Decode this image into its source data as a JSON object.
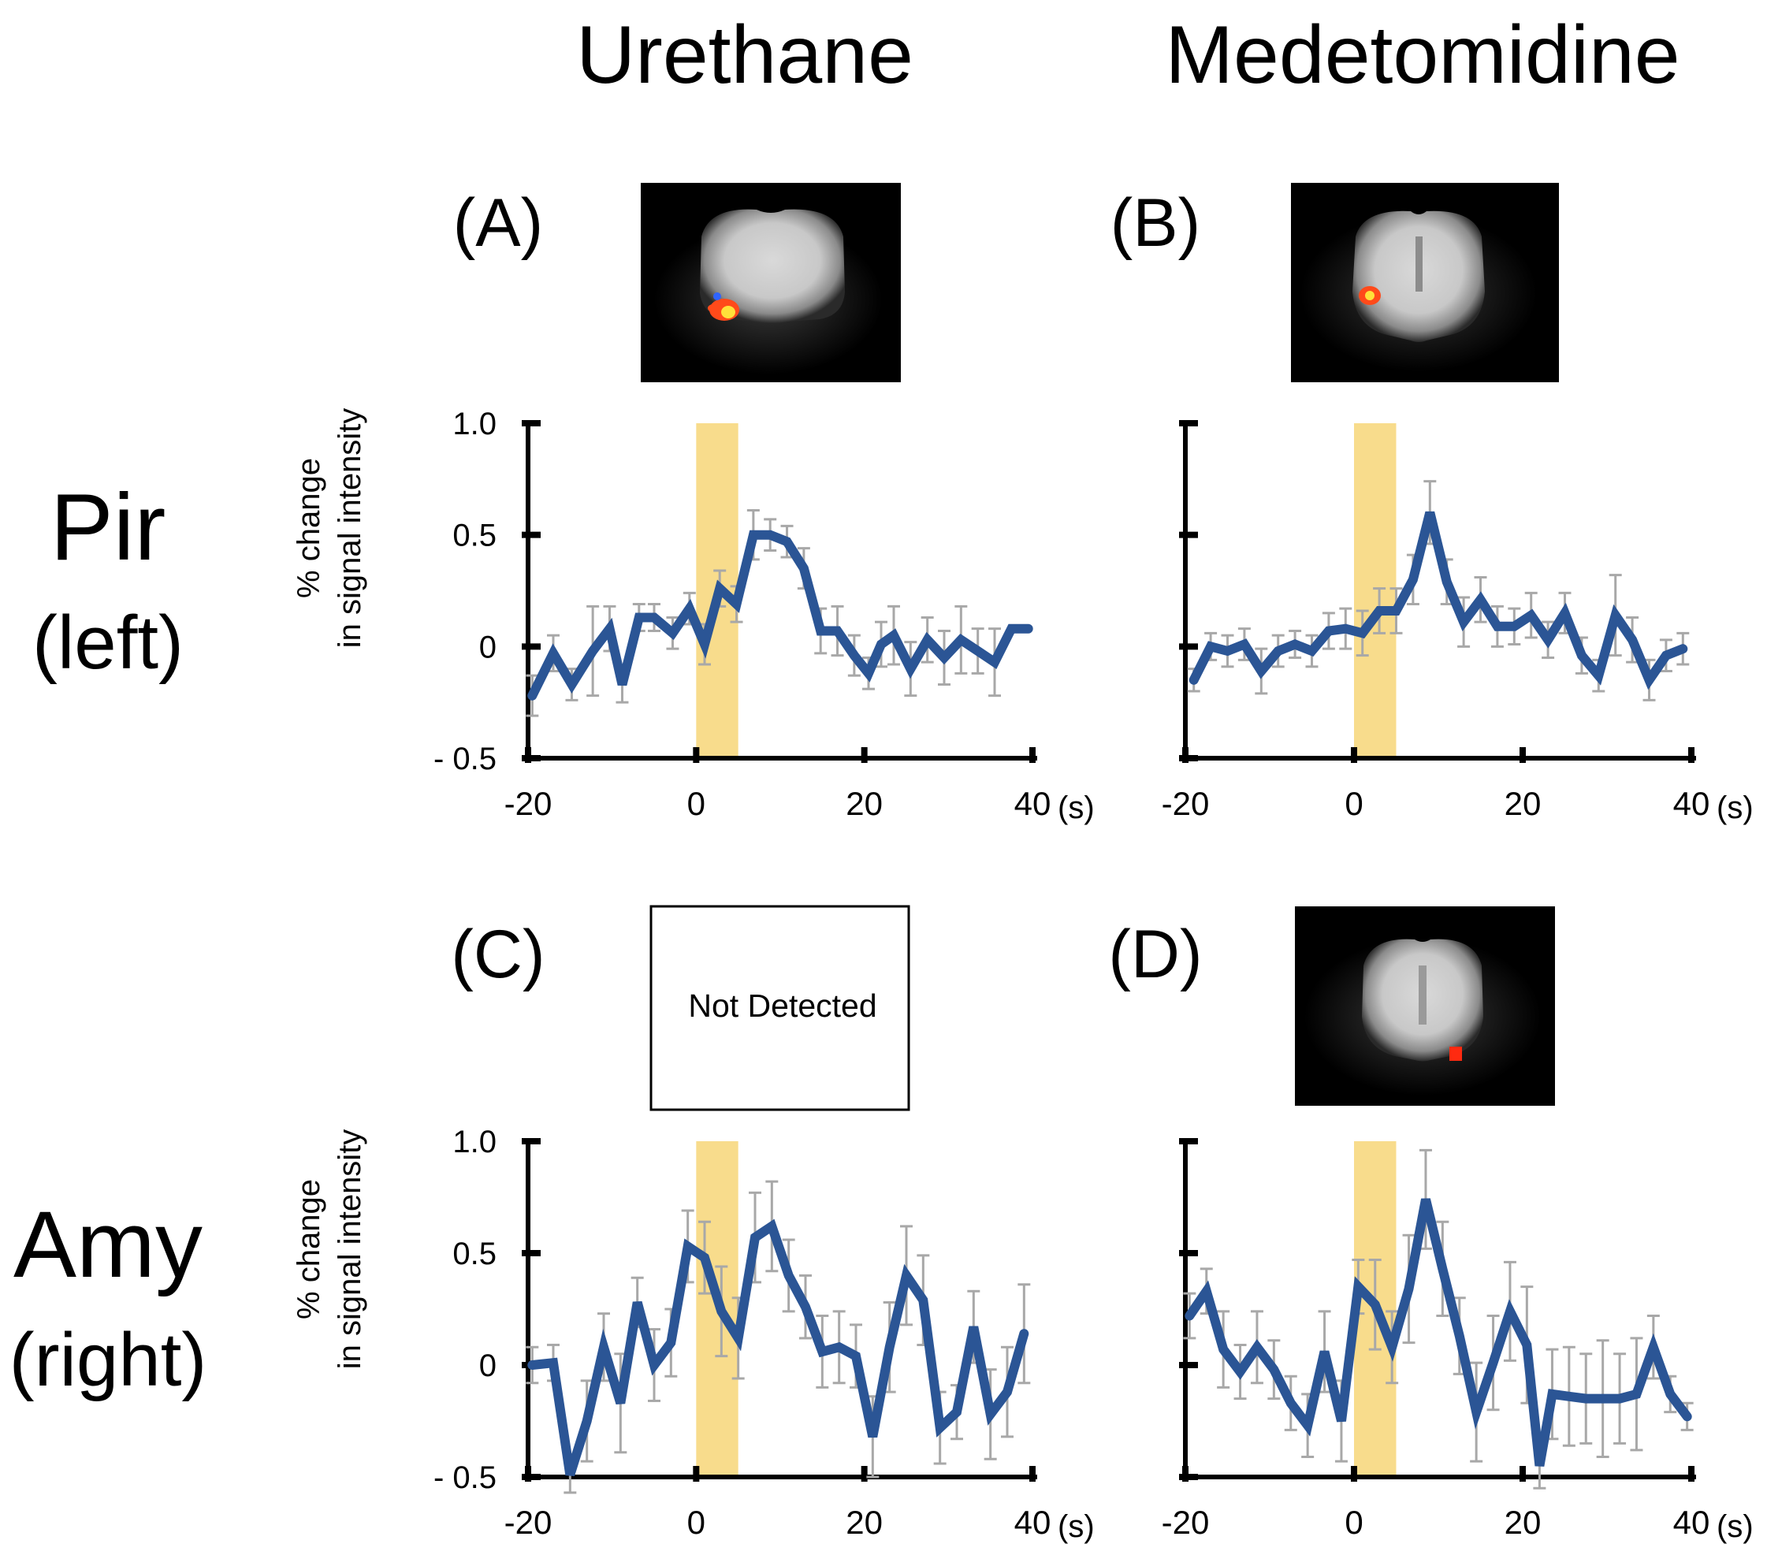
{
  "column_headers": [
    "Urethane",
    "Medetomidine"
  ],
  "row_labels": [
    {
      "region": "Pir",
      "side": "(left)"
    },
    {
      "region": "Amy",
      "side": "(right)"
    }
  ],
  "y_axis_title_line1": "% change",
  "y_axis_title_line2": "in signal intensity",
  "x_unit": "(s)",
  "not_detected_text": "Not Detected",
  "colors": {
    "line": "#2b5595",
    "stimulus_band": "#f8dc8c",
    "error_bar": "#a8a8a8",
    "axis": "#000000",
    "hot_blob": "#ff4a1a",
    "hot_center": "#ffe13a",
    "cold_blob": "#2f64ff"
  },
  "chart_data": [
    {
      "type": "line",
      "panel": "(A)",
      "anesthetic": "Urethane",
      "region": "Pir (left)",
      "xlabel": "(s)",
      "ylabel": "% change in signal intensity",
      "xlim": [
        -20,
        40
      ],
      "ylim": [
        -0.5,
        1.0
      ],
      "x_ticks": [
        "-20",
        "0",
        "20",
        "40"
      ],
      "y_ticks": [
        "1.0",
        "0.5",
        "0",
        "- 0.5"
      ],
      "y_tick_values": [
        1.0,
        0.5,
        0,
        -0.5
      ],
      "show_y_tick_labels": true,
      "stimulus": [
        0,
        5
      ],
      "activation_map": "shown",
      "x": [
        -19.5,
        -17,
        -14.8,
        -12.3,
        -10.3,
        -8.8,
        -6.8,
        -5,
        -2.8,
        -0.8,
        1,
        2.8,
        4.8,
        6.8,
        8.8,
        10.8,
        12.8,
        14.8,
        16.8,
        18.8,
        20.5,
        22,
        23.5,
        25.5,
        27.5,
        29.5,
        31.5,
        33.5,
        35.5,
        37.5,
        39.5
      ],
      "y": [
        -0.22,
        -0.03,
        -0.17,
        -0.02,
        0.08,
        -0.17,
        0.13,
        0.13,
        0.06,
        0.17,
        0.01,
        0.26,
        0.19,
        0.5,
        0.5,
        0.47,
        0.35,
        0.07,
        0.07,
        -0.04,
        -0.12,
        0.01,
        0.05,
        -0.1,
        0.03,
        -0.05,
        0.03,
        -0.02,
        -0.07,
        0.08,
        0.08
      ],
      "err": [
        0.09,
        0.08,
        0.07,
        0.2,
        0.1,
        0.08,
        0.06,
        0.06,
        0.07,
        0.07,
        0.09,
        0.08,
        0.08,
        0.11,
        0.07,
        0.07,
        0.09,
        0.1,
        0.11,
        0.09,
        0.07,
        0.1,
        0.13,
        0.12,
        0.1,
        0.12,
        0.15,
        0.1,
        0.15,
        0.0,
        0.0
      ],
      "label_id": "A"
    },
    {
      "type": "line",
      "panel": "(B)",
      "anesthetic": "Medetomidine",
      "region": "Pir (left)",
      "xlabel": "(s)",
      "ylabel": "% change in signal intensity",
      "xlim": [
        -20,
        40
      ],
      "ylim": [
        -0.5,
        1.0
      ],
      "x_ticks": [
        "-20",
        "0",
        "20",
        "40"
      ],
      "y_ticks": [],
      "y_tick_values": [
        1.0,
        0.5,
        0,
        -0.5
      ],
      "show_y_tick_labels": false,
      "stimulus": [
        0,
        5
      ],
      "activation_map": "shown",
      "x": [
        -19,
        -17,
        -15,
        -13,
        -11,
        -9,
        -7,
        -5,
        -3,
        -1,
        1,
        3,
        5,
        7,
        9,
        11,
        13,
        15,
        17,
        19,
        21,
        23,
        25,
        27,
        29,
        31,
        33,
        35,
        37,
        39
      ],
      "y": [
        -0.15,
        0.0,
        -0.02,
        0.01,
        -0.11,
        -0.02,
        0.01,
        -0.02,
        0.07,
        0.08,
        0.06,
        0.16,
        0.16,
        0.3,
        0.6,
        0.29,
        0.11,
        0.21,
        0.09,
        0.09,
        0.14,
        0.03,
        0.15,
        -0.04,
        -0.13,
        0.14,
        0.03,
        -0.15,
        -0.04,
        -0.01
      ],
      "err": [
        0.05,
        0.06,
        0.07,
        0.07,
        0.1,
        0.07,
        0.06,
        0.07,
        0.08,
        0.09,
        0.1,
        0.1,
        0.1,
        0.11,
        0.14,
        0.1,
        0.11,
        0.1,
        0.09,
        0.08,
        0.1,
        0.08,
        0.09,
        0.08,
        0.07,
        0.18,
        0.1,
        0.09,
        0.07,
        0.07
      ],
      "label_id": "B"
    },
    {
      "type": "line",
      "panel": "(C)",
      "anesthetic": "Urethane",
      "region": "Amy (right)",
      "xlabel": "(s)",
      "ylabel": "% change in signal intensity",
      "xlim": [
        -20,
        40
      ],
      "ylim": [
        -0.5,
        1.0
      ],
      "x_ticks": [
        "-20",
        "0",
        "20",
        "40"
      ],
      "y_ticks": [
        "1.0",
        "0.5",
        "0",
        "- 0.5"
      ],
      "y_tick_values": [
        1.0,
        0.5,
        0,
        -0.5
      ],
      "show_y_tick_labels": true,
      "stimulus": [
        0,
        5
      ],
      "activation_map": "not_detected",
      "x": [
        -19.5,
        -17,
        -15,
        -13,
        -11,
        -9,
        -7,
        -5,
        -3,
        -1,
        1,
        3,
        5,
        7,
        9,
        11,
        13,
        15,
        17,
        19,
        21,
        23,
        25,
        27,
        29,
        31,
        33,
        35,
        37,
        39
      ],
      "y": [
        0.0,
        0.01,
        -0.49,
        -0.25,
        0.08,
        -0.17,
        0.28,
        0.0,
        0.1,
        0.53,
        0.48,
        0.24,
        0.12,
        0.57,
        0.62,
        0.4,
        0.26,
        0.06,
        0.08,
        0.04,
        -0.32,
        0.08,
        0.4,
        0.29,
        -0.28,
        -0.21,
        0.17,
        -0.22,
        -0.12,
        0.14
      ],
      "err": [
        0.08,
        0.08,
        0.08,
        0.18,
        0.15,
        0.22,
        0.11,
        0.16,
        0.15,
        0.16,
        0.16,
        0.2,
        0.18,
        0.2,
        0.2,
        0.16,
        0.14,
        0.16,
        0.16,
        0.14,
        0.18,
        0.2,
        0.22,
        0.2,
        0.16,
        0.12,
        0.16,
        0.2,
        0.2,
        0.22
      ],
      "label_id": "C"
    },
    {
      "type": "line",
      "panel": "(D)",
      "anesthetic": "Medetomidine",
      "region": "Amy (right)",
      "xlabel": "(s)",
      "ylabel": "% change in signal intensity",
      "xlim": [
        -20,
        40
      ],
      "ylim": [
        -0.5,
        1.0
      ],
      "x_ticks": [
        "-20",
        "0",
        "20",
        "40"
      ],
      "y_ticks": [],
      "y_tick_values": [
        1.0,
        0.5,
        0,
        -0.5
      ],
      "show_y_tick_labels": false,
      "stimulus": [
        0,
        5
      ],
      "activation_map": "shown",
      "x": [
        -19.5,
        -17.5,
        -15.5,
        -13.5,
        -11.5,
        -9.5,
        -7.5,
        -5.5,
        -3.5,
        -1.5,
        0.5,
        2.5,
        4.5,
        6.5,
        8.5,
        10.5,
        12.5,
        14.5,
        16.5,
        18.5,
        20.5,
        22,
        23.5,
        25.5,
        27.5,
        29.5,
        31.5,
        33.5,
        35.5,
        37.5,
        39.5
      ],
      "y": [
        0.22,
        0.33,
        0.07,
        -0.03,
        0.08,
        -0.02,
        -0.17,
        -0.27,
        0.06,
        -0.25,
        0.35,
        0.27,
        0.08,
        0.34,
        0.74,
        0.43,
        0.13,
        -0.21,
        0.01,
        0.24,
        0.09,
        -0.45,
        -0.13,
        -0.14,
        -0.15,
        -0.15,
        -0.15,
        -0.13,
        0.08,
        -0.13,
        -0.23
      ],
      "err": [
        0.1,
        0.1,
        0.17,
        0.12,
        0.16,
        0.13,
        0.12,
        0.14,
        0.18,
        0.18,
        0.12,
        0.2,
        0.16,
        0.24,
        0.22,
        0.21,
        0.17,
        0.22,
        0.21,
        0.22,
        0.26,
        0.1,
        0.2,
        0.22,
        0.2,
        0.26,
        0.2,
        0.25,
        0.14,
        0.08,
        0.06
      ],
      "label_id": "D"
    }
  ]
}
